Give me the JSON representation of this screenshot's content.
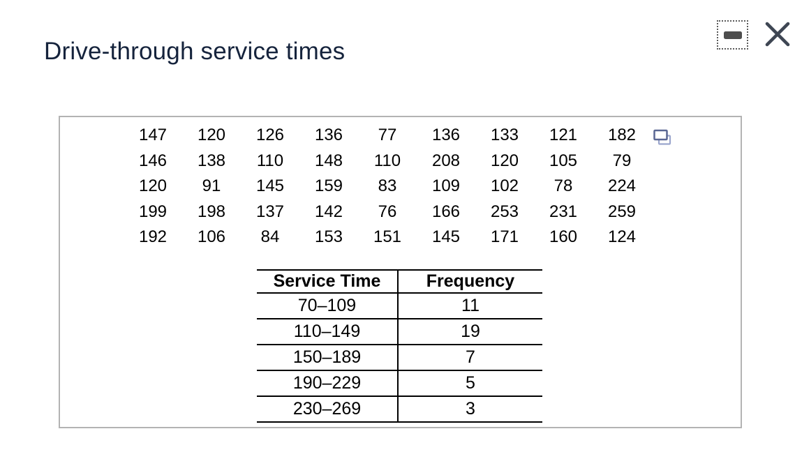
{
  "window": {
    "title": "Drive-through service times",
    "controls": {
      "minimize_icon": "dash",
      "close_icon": "x"
    }
  },
  "panel": {
    "copy_icon": "overlapping-windows"
  },
  "data_grid": {
    "rows": [
      [
        147,
        120,
        126,
        136,
        77,
        136,
        133,
        121,
        182
      ],
      [
        146,
        138,
        110,
        148,
        110,
        208,
        120,
        105,
        79
      ],
      [
        120,
        91,
        145,
        159,
        83,
        109,
        102,
        78,
        224
      ],
      [
        199,
        198,
        137,
        142,
        76,
        166,
        253,
        231,
        259
      ],
      [
        192,
        106,
        84,
        153,
        151,
        145,
        171,
        160,
        124
      ]
    ]
  },
  "frequency_table": {
    "headers": [
      "Service Time",
      "Frequency"
    ],
    "rows": [
      {
        "service_time": "70–109",
        "frequency": 11
      },
      {
        "service_time": "110–149",
        "frequency": 19
      },
      {
        "service_time": "150–189",
        "frequency": 7
      },
      {
        "service_time": "190–229",
        "frequency": 5
      },
      {
        "service_time": "230–269",
        "frequency": 3
      }
    ]
  },
  "colors": {
    "title": "#15233c",
    "panel_border": "#b3b3b3",
    "table_border": "#000000",
    "close_icon": "#3e4653",
    "minimize_dash": "#4d4d4d",
    "minimize_outline": "#5a5a5a",
    "copy_icon_front": "#5a6793",
    "copy_icon_back": "#9ba6cd"
  }
}
